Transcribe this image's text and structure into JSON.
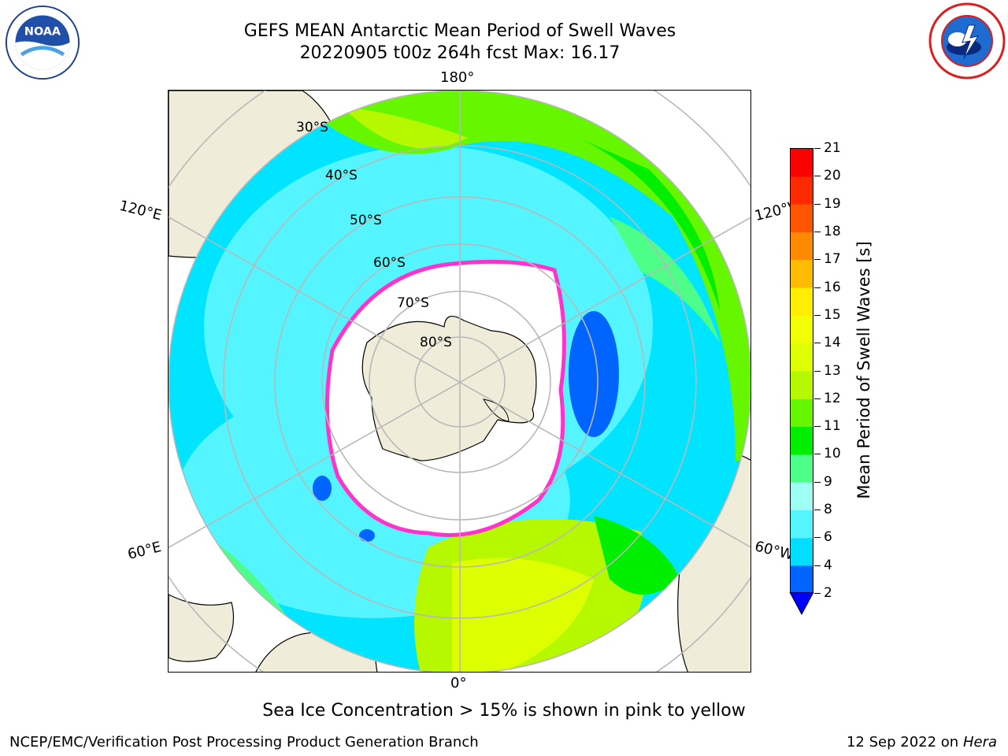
{
  "header": {
    "title_line1": "GEFS MEAN Antarctic Mean Period of Swell Waves",
    "title_line2": "20220905 t00z 264h fcst   Max: 16.17"
  },
  "logos": {
    "left": "noaa-logo",
    "right": "nws-logo"
  },
  "map": {
    "projection": "south-polar-stereographic",
    "lon_labels": {
      "top": "180°",
      "bottom": "0°",
      "upper_left": "120°E",
      "lower_left": "60°E",
      "upper_right": "120°W",
      "lower_right": "60°W"
    },
    "lat_labels": [
      "30°S",
      "40°S",
      "50°S",
      "60°S",
      "70°S",
      "80°S"
    ],
    "land_color": "#efedda",
    "grid_color": "#b8b8b8"
  },
  "colorbar": {
    "label": "Mean Period of Swell Waves [s]",
    "ticks": [
      "2",
      "4",
      "6",
      "8",
      "9",
      "10",
      "11",
      "12",
      "13",
      "14",
      "15",
      "16",
      "17",
      "18",
      "19",
      "20",
      "21"
    ],
    "colors": [
      "#0064ff",
      "#00ddff",
      "#55f5ff",
      "#9efff5",
      "#4dff88",
      "#00ee00",
      "#66f600",
      "#b6f800",
      "#deff00",
      "#f1ff00",
      "#ffee00",
      "#ffbb00",
      "#ff8a00",
      "#ff5500",
      "#ff2a00",
      "#ff0000"
    ],
    "extend_color": "#0000ff"
  },
  "footer": {
    "note": "Sea Ice Concentration > 15% is shown in pink to yellow",
    "left": "NCEP/EMC/Verification Post Processing Product Generation Branch",
    "date": "12 Sep 2022 on",
    "system": "Hera"
  }
}
